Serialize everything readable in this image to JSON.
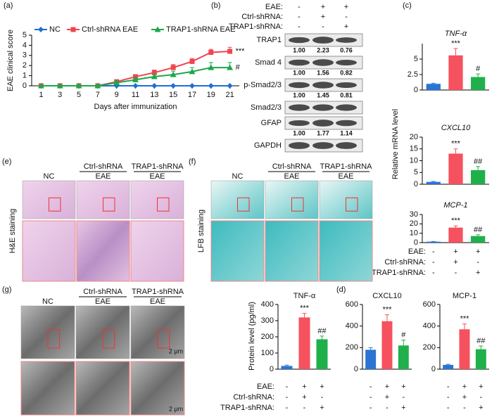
{
  "chart_data": [
    {
      "type": "line",
      "xlabel": "Days after immunization",
      "ylabel": "EAE clinical score",
      "x": [
        1,
        3,
        5,
        7,
        9,
        11,
        13,
        15,
        17,
        19,
        21
      ],
      "xlim": [
        0,
        22
      ],
      "xticks": [
        1,
        3,
        5,
        7,
        9,
        11,
        13,
        15,
        17,
        19,
        21
      ],
      "ylim": [
        0,
        5
      ],
      "yticks": [
        0,
        1,
        2,
        3,
        4,
        5
      ],
      "series": [
        {
          "name": "NC",
          "color": "#1f6fd1",
          "marker": "diamond",
          "values": [
            0,
            0,
            0,
            0,
            0,
            0,
            0,
            0,
            0,
            0,
            0
          ],
          "errors": [
            0,
            0,
            0,
            0,
            0,
            0,
            0,
            0,
            0,
            0,
            0
          ]
        },
        {
          "name": "Ctrl-shRNA EAE",
          "color": "#f0454f",
          "marker": "square",
          "values": [
            0,
            0,
            0,
            0,
            0.4,
            0.9,
            1.3,
            1.8,
            2.4,
            3.3,
            3.4
          ],
          "errors": [
            0,
            0,
            0,
            0,
            0.2,
            0.2,
            0.25,
            0.3,
            0.3,
            0.3,
            0.4
          ],
          "end_label": "***"
        },
        {
          "name": "TRAP1-shRNA EAE",
          "color": "#1aa84a",
          "marker": "triangle",
          "values": [
            0,
            0,
            0,
            0,
            0.3,
            0.6,
            0.9,
            1.1,
            1.4,
            1.8,
            1.8
          ],
          "errors": [
            0,
            0,
            0,
            0,
            0.2,
            0.25,
            0.3,
            0.35,
            0.4,
            0.5,
            0.5
          ],
          "end_label": "#"
        }
      ]
    },
    {
      "type": "bar",
      "title": "TNF-α",
      "ylim": [
        0,
        7.5
      ],
      "yticks": [
        0,
        2.5,
        5
      ],
      "values": [
        1,
        5.6,
        2.1
      ],
      "errors": [
        0.1,
        1.1,
        0.5
      ],
      "colors": [
        "#2a74d4",
        "#f5515f",
        "#20b04b"
      ],
      "annotations": [
        null,
        "***",
        "#"
      ]
    },
    {
      "type": "bar",
      "title": "CXCL10",
      "ylim": [
        0,
        20
      ],
      "yticks": [
        0,
        5,
        10,
        15,
        20
      ],
      "values": [
        1,
        13,
        6
      ],
      "errors": [
        0.2,
        2,
        1.5
      ],
      "colors": [
        "#2a74d4",
        "#f5515f",
        "#20b04b"
      ],
      "annotations": [
        null,
        "***",
        "##"
      ]
    },
    {
      "type": "bar",
      "title": "MCP-1",
      "ylim": [
        0,
        30
      ],
      "yticks": [
        0,
        10,
        20,
        30
      ],
      "values": [
        1,
        16,
        7
      ],
      "errors": [
        0.2,
        1.8,
        1.3
      ],
      "colors": [
        "#2a74d4",
        "#f5515f",
        "#20b04b"
      ],
      "annotations": [
        null,
        "***",
        "##"
      ]
    },
    {
      "type": "bar",
      "title": "TNF-α",
      "ylim": [
        0,
        400
      ],
      "yticks": [
        0,
        100,
        200,
        300,
        400
      ],
      "values": [
        20,
        320,
        185
      ],
      "errors": [
        5,
        25,
        20
      ],
      "colors": [
        "#2a74d4",
        "#f5515f",
        "#20b04b"
      ],
      "annotations": [
        null,
        "***",
        "##"
      ]
    },
    {
      "type": "bar",
      "title": "CXCL10",
      "ylim": [
        0,
        600
      ],
      "yticks": [
        0,
        200,
        400,
        600
      ],
      "values": [
        180,
        445,
        220
      ],
      "errors": [
        20,
        60,
        50
      ],
      "colors": [
        "#2a74d4",
        "#f5515f",
        "#20b04b"
      ],
      "annotations": [
        null,
        "***",
        "#"
      ]
    },
    {
      "type": "bar",
      "title": "MCP-1",
      "ylim": [
        0,
        600
      ],
      "yticks": [
        0,
        200,
        400,
        600
      ],
      "values": [
        40,
        370,
        185
      ],
      "errors": [
        5,
        50,
        30
      ],
      "colors": [
        "#2a74d4",
        "#f5515f",
        "#20b04b"
      ],
      "annotations": [
        null,
        "***",
        "##"
      ]
    }
  ],
  "panel_a": {
    "label": "(a)"
  },
  "panel_b": {
    "label": "(b)",
    "conditions": [
      {
        "label": "EAE:",
        "signs": [
          "-",
          "+",
          "+"
        ]
      },
      {
        "label": "Ctrl-shRNA:",
        "signs": [
          "-",
          "+",
          "-"
        ]
      },
      {
        "label": "TRAP1-shRNA:",
        "signs": [
          "-",
          "-",
          "+"
        ]
      }
    ],
    "bands": [
      {
        "name": "TRAP1",
        "quant": [
          "1.00",
          "2.23",
          "0.76"
        ]
      },
      {
        "name": "Smad 4",
        "quant": [
          "1.00",
          "1.56",
          "0.82"
        ]
      },
      {
        "name": "p-Smad2/3",
        "quant": [
          "1.00",
          "1.45",
          "0.81"
        ]
      },
      {
        "name": "Smad2/3"
      },
      {
        "name": "GFAP",
        "quant": [
          "1.00",
          "1.77",
          "1.14"
        ]
      },
      {
        "name": "GAPDH"
      }
    ]
  },
  "panel_c": {
    "label": "(c)",
    "ylabel": "Relative mRNA level",
    "conditions": [
      {
        "label": "EAE:",
        "signs": [
          "-",
          "+",
          "+"
        ]
      },
      {
        "label": "Ctrl-shRNA:",
        "signs": [
          "-",
          "+",
          "-"
        ]
      },
      {
        "label": "TRAP1-shRNA:",
        "signs": [
          "-",
          "-",
          "+"
        ]
      }
    ]
  },
  "panel_d": {
    "label": "(d)",
    "ylabel": "Protein level (pg/ml)",
    "conditions": [
      {
        "label": "EAE:",
        "signs": [
          "-",
          "+",
          "+"
        ]
      },
      {
        "label": "Ctrl-shRNA:",
        "signs": [
          "-",
          "+",
          "-"
        ]
      },
      {
        "label": "TRAP1-shRNA:",
        "signs": [
          "-",
          "-",
          "+"
        ]
      }
    ]
  },
  "panel_e": {
    "label": "(e)",
    "side_label": "H&E staining",
    "columns": [
      {
        "name": "NC"
      },
      {
        "group": "Ctrl-shRNA",
        "name": "EAE"
      },
      {
        "group": "TRAP1-shRNA",
        "name": "EAE"
      }
    ]
  },
  "panel_f": {
    "label": "(f)",
    "side_label": "LFB staining",
    "columns": [
      {
        "name": "NC"
      },
      {
        "group": "Ctrl-shRNA",
        "name": "EAE"
      },
      {
        "group": "TRAP1-shRNA",
        "name": "EAE"
      }
    ]
  },
  "panel_g": {
    "label": "(g)",
    "columns": [
      {
        "name": "NC"
      },
      {
        "group": "Ctrl-shRNA",
        "name": "EAE"
      },
      {
        "group": "TRAP1-shRNA",
        "name": "EAE"
      }
    ],
    "scale_labels": [
      "2 μm",
      "2 μm"
    ]
  }
}
